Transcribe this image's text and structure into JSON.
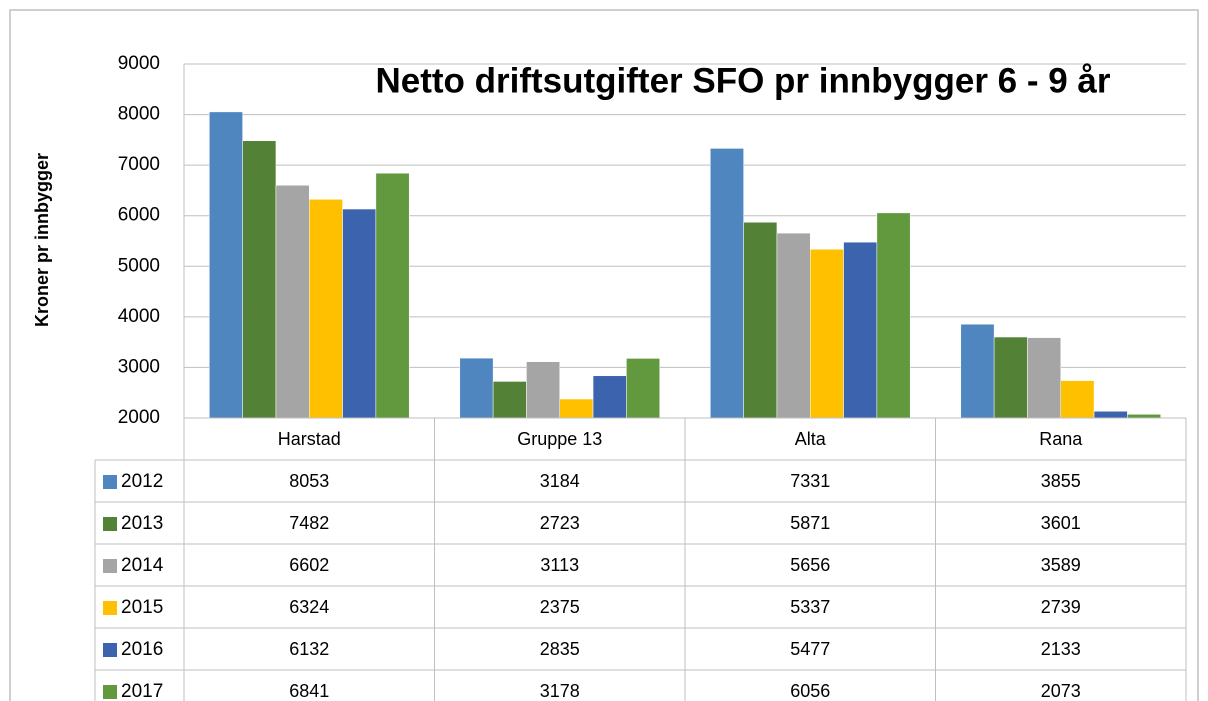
{
  "chart_data": {
    "type": "bar",
    "title": "Netto driftsutgifter SFO pr innbygger 6 - 9 år",
    "y_label": "Kroner pr innbygger",
    "categories": [
      "Harstad",
      "Gruppe 13",
      "Alta",
      "Rana"
    ],
    "series": [
      {
        "name": "2012",
        "color": "#4f86c0",
        "values": [
          8053,
          3184,
          7331,
          3855
        ]
      },
      {
        "name": "2013",
        "color": "#538135",
        "values": [
          7482,
          2723,
          5871,
          3601
        ]
      },
      {
        "name": "2014",
        "color": "#a5a5a5",
        "values": [
          6602,
          3113,
          5656,
          3589
        ]
      },
      {
        "name": "2015",
        "color": "#ffc000",
        "values": [
          6324,
          2375,
          5337,
          2739
        ]
      },
      {
        "name": "2016",
        "color": "#3c64ae",
        "values": [
          6132,
          2835,
          5477,
          2133
        ]
      },
      {
        "name": "2017",
        "color": "#62993e",
        "values": [
          6841,
          3178,
          6056,
          2073
        ]
      }
    ],
    "ylim": [
      2000,
      9000
    ],
    "yticks": [
      2000,
      3000,
      4000,
      5000,
      6000,
      7000,
      8000,
      9000
    ],
    "grid": true,
    "data_table": true
  }
}
